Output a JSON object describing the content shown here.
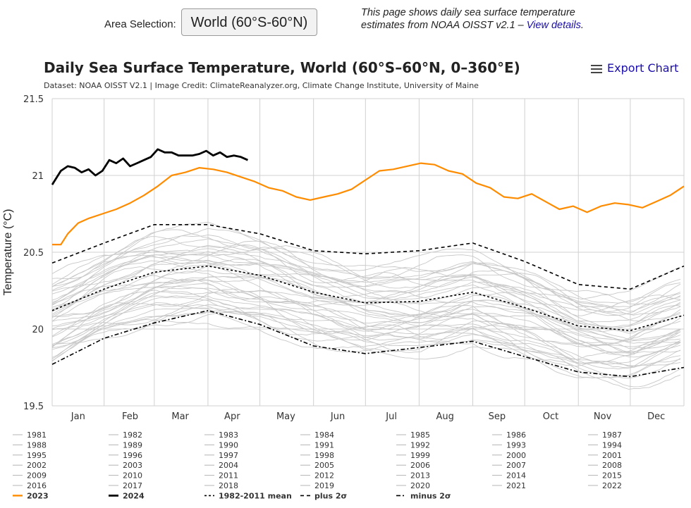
{
  "controls": {
    "area_label": "Area Selection:",
    "area_value": "World (60°S-60°N)"
  },
  "info": {
    "text": "This page shows daily sea surface temperature estimates from NOAA OISST v2.1 – ",
    "link": "View details",
    "end": "."
  },
  "export_label": "Export Chart",
  "colors": {
    "y2023": "#ff8c00",
    "y2024": "#000000",
    "historic": "#c8c8c8",
    "stat": "#000000",
    "grid": "#d0d0d0"
  },
  "chart_data": {
    "type": "line",
    "title": "Daily Sea Surface Temperature, World (60°S–60°N, 0–360°E)",
    "subtitle": "Dataset: NOAA OISST V2.1 | Image Credit: ClimateReanalyzer.org, Climate Change Institute, University of Maine",
    "ylabel": "Temperature (°C)",
    "ylim": [
      19.5,
      21.5
    ],
    "y_ticks": [
      "19.5",
      "20",
      "20.5",
      "21",
      "21.5"
    ],
    "y_tick_values": [
      19.5,
      20,
      20.5,
      21,
      21.5
    ],
    "x_unit": "day of year",
    "xlim": [
      1,
      366
    ],
    "month_labels": [
      "Jan",
      "Feb",
      "Mar",
      "Apr",
      "May",
      "Jun",
      "Jul",
      "Aug",
      "Sep",
      "Oct",
      "Nov",
      "Dec"
    ],
    "month_centers": [
      16,
      46,
      75,
      105,
      136,
      166,
      197,
      228,
      258,
      289,
      319,
      350
    ],
    "month_starts": [
      31,
      60,
      91,
      121,
      152,
      182,
      213,
      244,
      274,
      305,
      335
    ],
    "grid": true,
    "legend_position": "bottom",
    "legend": [
      "1981",
      "1982",
      "1983",
      "1984",
      "1985",
      "1986",
      "1987",
      "1988",
      "1989",
      "1990",
      "1991",
      "1992",
      "1993",
      "1994",
      "1995",
      "1996",
      "1997",
      "1998",
      "1999",
      "2000",
      "2001",
      "2002",
      "2003",
      "2004",
      "2005",
      "2006",
      "2007",
      "2008",
      "2009",
      "2010",
      "2011",
      "2012",
      "2013",
      "2014",
      "2015",
      "2016",
      "2017",
      "2018",
      "2019",
      "2020",
      "2021",
      "2022",
      "2023",
      "2024",
      "1982-2011 mean",
      "plus 2σ",
      "minus 2σ"
    ],
    "series": [
      {
        "name": "2024",
        "x": [
          1,
          6,
          10,
          14,
          18,
          22,
          26,
          30,
          34,
          38,
          42,
          46,
          50,
          54,
          58,
          62,
          66,
          70,
          74,
          78,
          82,
          86,
          90,
          94,
          98,
          102,
          106,
          110,
          114
        ],
        "y": [
          20.94,
          21.03,
          21.06,
          21.05,
          21.02,
          21.04,
          21.0,
          21.03,
          21.1,
          21.08,
          21.11,
          21.06,
          21.08,
          21.1,
          21.12,
          21.17,
          21.15,
          21.15,
          21.13,
          21.13,
          21.13,
          21.14,
          21.16,
          21.13,
          21.15,
          21.12,
          21.13,
          21.12,
          21.1
        ]
      },
      {
        "name": "2023",
        "x": [
          1,
          6,
          10,
          16,
          22,
          30,
          38,
          46,
          54,
          62,
          70,
          78,
          86,
          94,
          102,
          110,
          118,
          126,
          134,
          142,
          150,
          158,
          166,
          174,
          182,
          190,
          198,
          206,
          214,
          222,
          230,
          238,
          246,
          254,
          262,
          270,
          278,
          286,
          294,
          302,
          310,
          318,
          326,
          334,
          342,
          350,
          358,
          366
        ],
        "y": [
          20.55,
          20.55,
          20.62,
          20.69,
          20.72,
          20.75,
          20.78,
          20.82,
          20.87,
          20.93,
          21.0,
          21.02,
          21.05,
          21.04,
          21.02,
          20.99,
          20.96,
          20.92,
          20.9,
          20.86,
          20.84,
          20.86,
          20.88,
          20.91,
          20.97,
          21.03,
          21.04,
          21.06,
          21.08,
          21.07,
          21.03,
          21.01,
          20.95,
          20.92,
          20.86,
          20.85,
          20.88,
          20.83,
          20.78,
          20.8,
          20.76,
          20.8,
          20.82,
          20.81,
          20.79,
          20.83,
          20.87,
          20.93
        ]
      },
      {
        "name": "1982-2011 mean",
        "x": [
          1,
          31,
          60,
          91,
          121,
          152,
          182,
          213,
          244,
          274,
          305,
          335,
          366
        ],
        "y": [
          20.12,
          20.26,
          20.37,
          20.41,
          20.35,
          20.24,
          20.17,
          20.18,
          20.24,
          20.14,
          20.02,
          19.99,
          20.09
        ]
      },
      {
        "name": "plus 2σ",
        "x": [
          1,
          31,
          60,
          91,
          121,
          152,
          182,
          213,
          244,
          274,
          305,
          335,
          366
        ],
        "y": [
          20.43,
          20.56,
          20.68,
          20.68,
          20.62,
          20.51,
          20.49,
          20.51,
          20.56,
          20.44,
          20.29,
          20.26,
          20.41
        ]
      },
      {
        "name": "minus 2σ",
        "x": [
          1,
          31,
          60,
          91,
          121,
          152,
          182,
          213,
          244,
          274,
          305,
          335,
          366
        ],
        "y": [
          19.77,
          19.94,
          20.04,
          20.12,
          20.03,
          19.89,
          19.84,
          19.88,
          19.92,
          19.82,
          19.72,
          19.69,
          19.75
        ]
      }
    ]
  }
}
